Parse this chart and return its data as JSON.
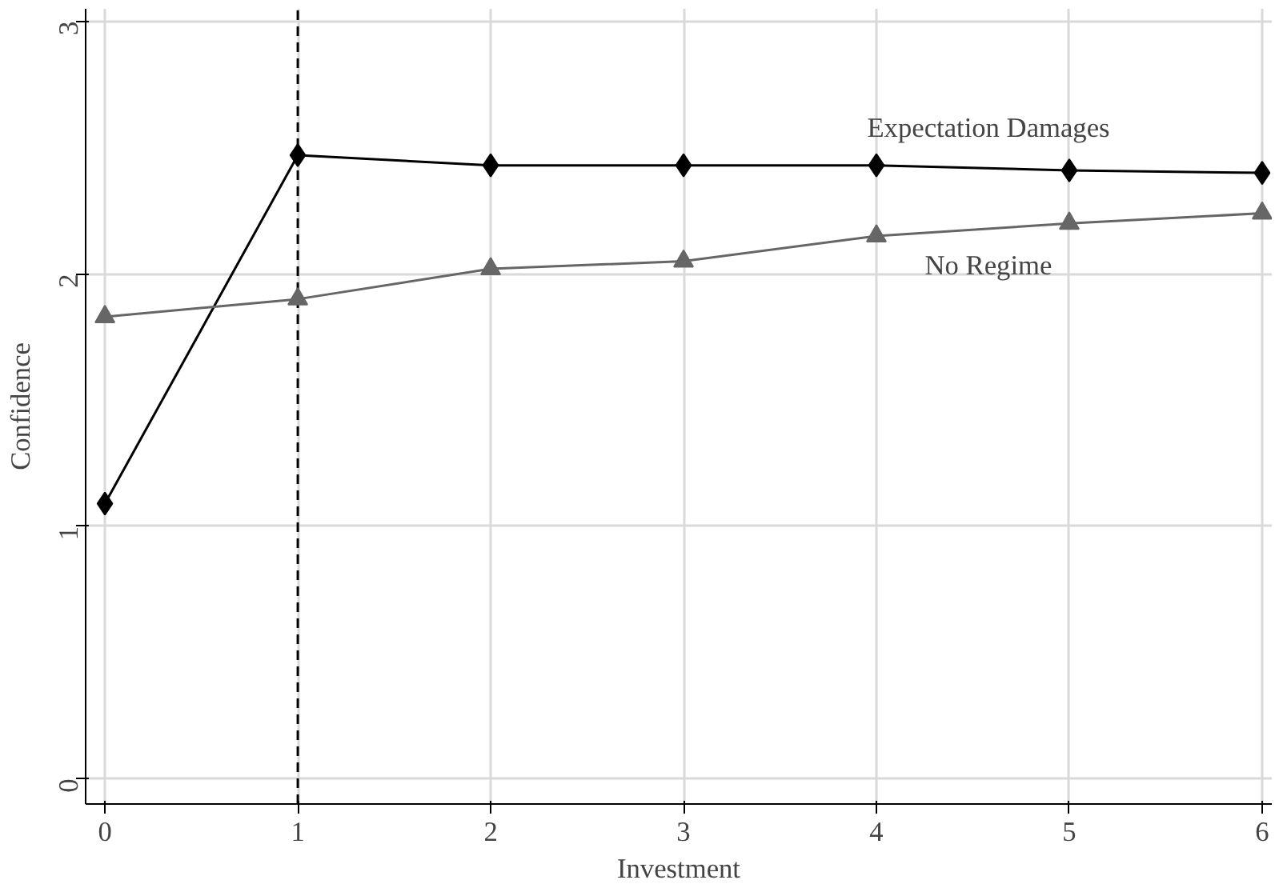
{
  "chart_data": {
    "type": "line",
    "xlabel": "Investment",
    "ylabel": "Confidence",
    "x": [
      0,
      1,
      2,
      3,
      4,
      5,
      6
    ],
    "series": [
      {
        "name": "Expectation Damages",
        "color": "#000000",
        "marker": "diamond",
        "values": [
          1.09,
          2.47,
          2.43,
          2.43,
          2.43,
          2.41,
          2.4
        ]
      },
      {
        "name": "No Regime",
        "color": "#666666",
        "marker": "triangle",
        "values": [
          1.83,
          1.9,
          2.02,
          2.05,
          2.15,
          2.2,
          2.24
        ]
      }
    ],
    "xlim": [
      -0.1,
      6.05
    ],
    "ylim": [
      -0.1,
      3.05
    ],
    "xticks": [
      0,
      1,
      2,
      3,
      4,
      5,
      6
    ],
    "yticks": [
      0,
      1,
      2,
      3
    ],
    "grid": true,
    "legend": false,
    "ref_lines": [
      {
        "axis": "x",
        "value": 1,
        "color": "#000000",
        "line_style": "dashed"
      }
    ]
  }
}
